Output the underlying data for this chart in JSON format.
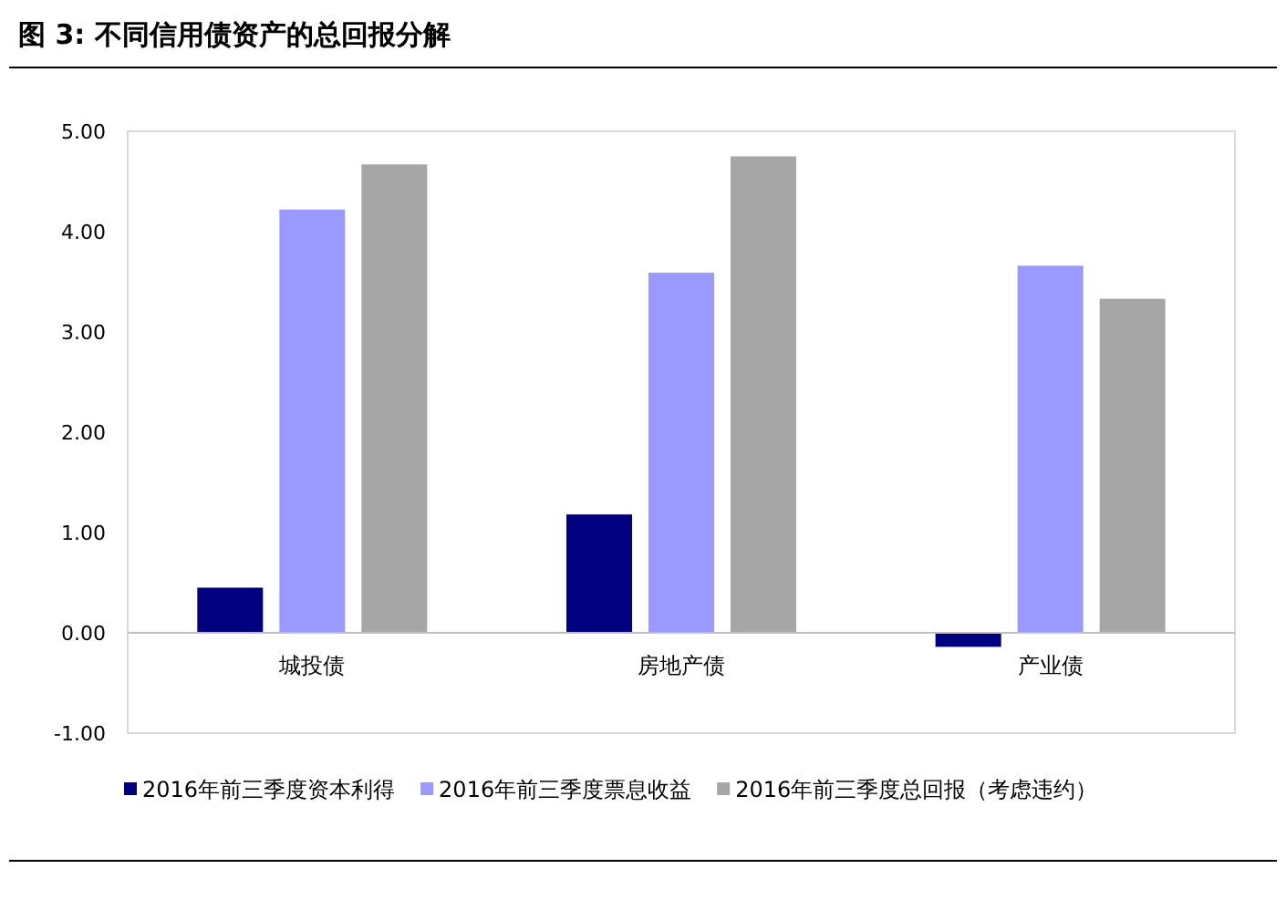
{
  "chart_data": {
    "type": "bar",
    "title": "图 3:  不同信用债资产的总回报分解",
    "categories": [
      "城投债",
      "房地产债",
      "产业债"
    ],
    "series": [
      {
        "name": "2016年前三季度资本利得",
        "color": "#000080",
        "values": [
          0.45,
          1.18,
          -0.14
        ]
      },
      {
        "name": "2016年前三季度票息收益",
        "color": "#9999ff",
        "values": [
          4.22,
          3.59,
          3.66
        ]
      },
      {
        "name": "2016年前三季度总回报（考虑违约）",
        "color": "#a6a6a6",
        "values": [
          4.67,
          4.75,
          3.33
        ]
      }
    ],
    "ylim": [
      -1,
      5
    ],
    "yticks": [
      {
        "value": -1,
        "label": "-1.00"
      },
      {
        "value": 0,
        "label": "0.00"
      },
      {
        "value": 1,
        "label": "1.00"
      },
      {
        "value": 2,
        "label": "2.00"
      },
      {
        "value": 3,
        "label": "3.00"
      },
      {
        "value": 4,
        "label": "4.00"
      },
      {
        "value": 5,
        "label": "5.00"
      }
    ],
    "grid": false,
    "legend": "bottom"
  }
}
